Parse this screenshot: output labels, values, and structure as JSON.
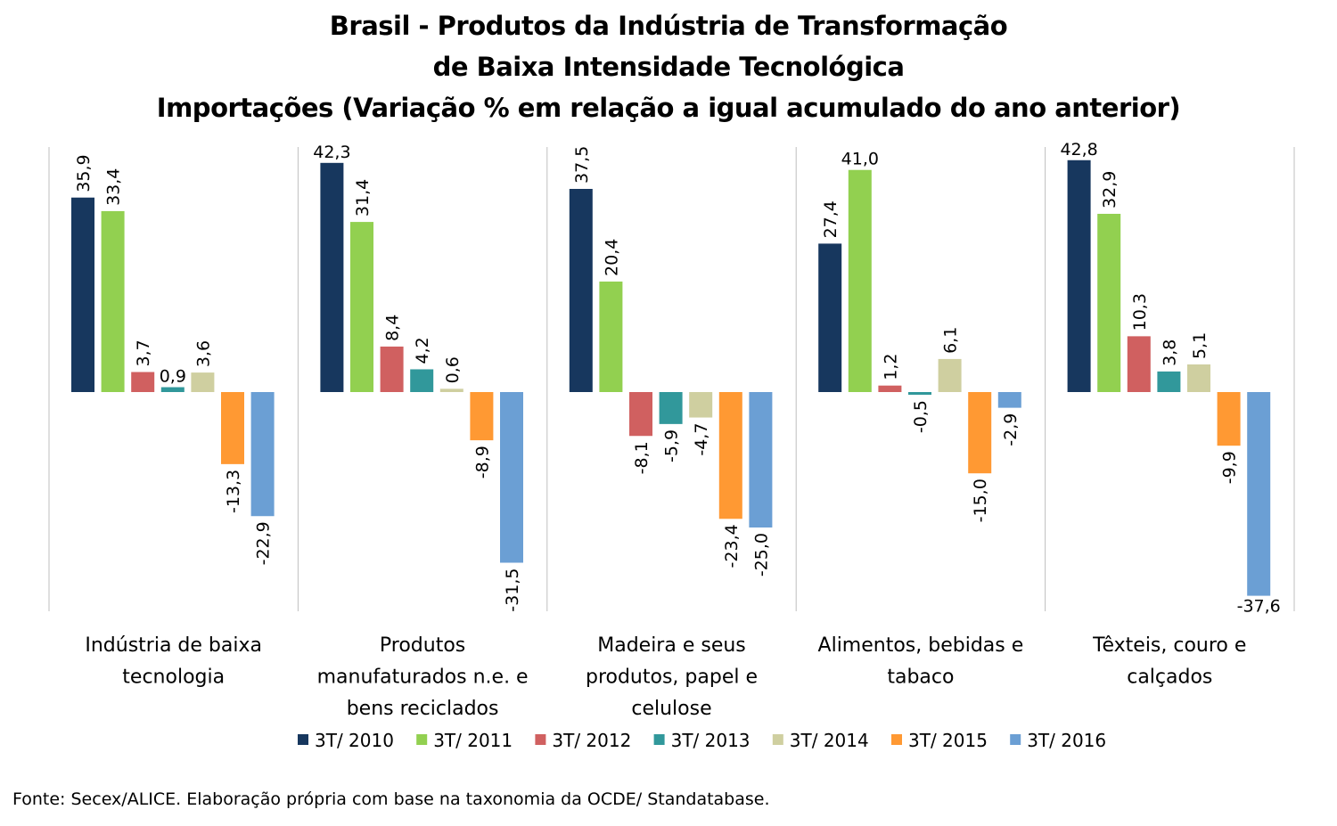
{
  "title": {
    "line1": "Brasil - Produtos da Indústria de Transformação",
    "line2": "de Baixa Intensidade Tecnológica",
    "line3": "Importações (Variação % em relação a igual acumulado do ano anterior)"
  },
  "source": "Fonte: Secex/ALICE. Elaboração própria com base na taxonomia da OCDE/ Standatabase.",
  "chart_data": {
    "type": "bar",
    "title": "Brasil - Produtos da Indústria de Transformação de Baixa Intensidade Tecnológica Importações (Variação % em relação a igual acumulado do ano anterior)",
    "categories": [
      "Indústria de baixa tecnologia",
      "Produtos manufaturados n.e. e bens reciclados",
      "Madeira e seus produtos, papel e celulose",
      "Alimentos, bebidas e tabaco",
      "Têxteis, couro e calçados"
    ],
    "category_lines": [
      [
        "Indústria de baixa",
        "tecnologia"
      ],
      [
        "Produtos",
        "manufaturados n.e. e",
        "bens reciclados"
      ],
      [
        "Madeira e seus",
        "produtos, papel e",
        "celulose"
      ],
      [
        "Alimentos, bebidas e",
        "tabaco"
      ],
      [
        "Têxteis, couro e",
        "calçados"
      ]
    ],
    "series": [
      {
        "name": "3T/ 2010",
        "color": "#17375E",
        "values": [
          35.9,
          42.3,
          37.5,
          27.4,
          42.8
        ],
        "labels": [
          "35,9",
          "42,3",
          "37,5",
          "27,4",
          "42,8"
        ]
      },
      {
        "name": "3T/ 2011",
        "color": "#92D050",
        "values": [
          33.4,
          31.4,
          20.4,
          41.0,
          32.9
        ],
        "labels": [
          "33,4",
          "31,4",
          "20,4",
          "41,0",
          "32,9"
        ]
      },
      {
        "name": "3T/ 2012",
        "color": "#D06060",
        "values": [
          3.7,
          8.4,
          -8.1,
          1.2,
          10.3
        ],
        "labels": [
          "3,7",
          "8,4",
          "-8,1",
          "1,2",
          "10,3"
        ]
      },
      {
        "name": "3T/ 2013",
        "color": "#31989B",
        "values": [
          0.9,
          4.2,
          -5.9,
          -0.5,
          3.8
        ],
        "labels": [
          "0,9",
          "4,2",
          "-5,9",
          "-0,5",
          "3,8"
        ]
      },
      {
        "name": "3T/ 2014",
        "color": "#CFCFA0",
        "values": [
          3.6,
          0.6,
          -4.7,
          6.1,
          5.1
        ],
        "labels": [
          "3,6",
          "0,6",
          "-4,7",
          "6,1",
          "5,1"
        ]
      },
      {
        "name": "3T/ 2015",
        "color": "#FF9933",
        "values": [
          -13.3,
          -8.9,
          -23.4,
          -15.0,
          -9.9
        ],
        "labels": [
          "-13,3",
          "-8,9",
          "-23,4",
          "-15,0",
          "-9,9"
        ]
      },
      {
        "name": "3T/ 2016",
        "color": "#6B9FD4",
        "values": [
          -22.9,
          -31.5,
          -25.0,
          -2.9,
          -37.6
        ],
        "labels": [
          "-22,9",
          "-31,5",
          "-25,0",
          "-2,9",
          "-37,6"
        ]
      }
    ],
    "label_rotated": [
      [
        true,
        true,
        true,
        false,
        true,
        true,
        true
      ],
      [
        false,
        true,
        true,
        true,
        true,
        true,
        true
      ],
      [
        true,
        true,
        true,
        true,
        true,
        true,
        true
      ],
      [
        true,
        false,
        true,
        true,
        true,
        true,
        true
      ],
      [
        false,
        true,
        true,
        true,
        true,
        true,
        false
      ]
    ],
    "ylim": [
      -40,
      45
    ],
    "grid": false,
    "legend": "bottom",
    "xlabel": "",
    "ylabel": ""
  }
}
